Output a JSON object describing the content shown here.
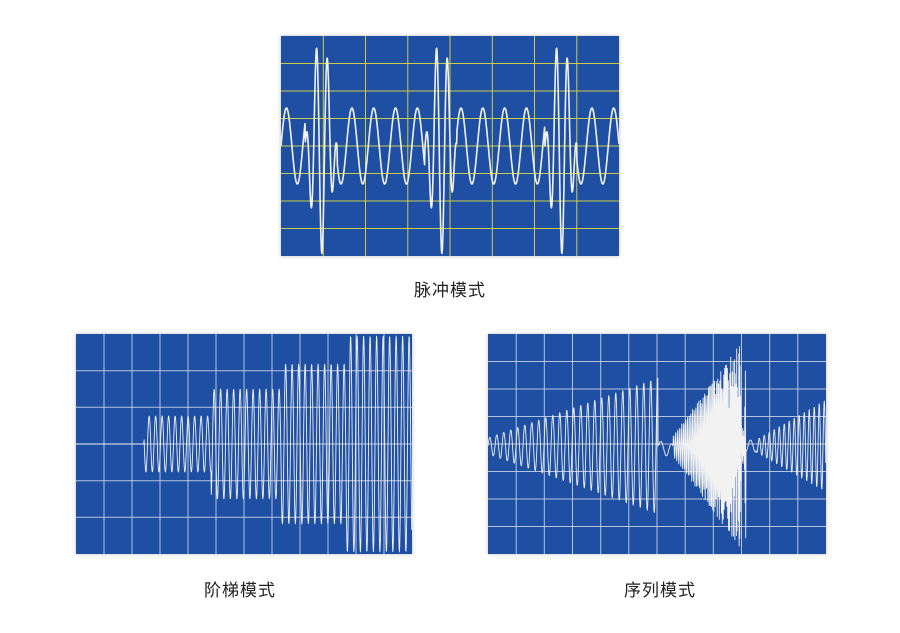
{
  "panels": [
    {
      "id": "pulse",
      "caption": "脉冲模式",
      "grid_color": "#e8e23a",
      "bg_color": "#1e4fa3",
      "wave_color": "#f2f2f2"
    },
    {
      "id": "step",
      "caption": "阶梯模式",
      "grid_color": "#cfd8ea",
      "bg_color": "#1e4fa3",
      "wave_color": "#f2f2f2"
    },
    {
      "id": "seq",
      "caption": "序列模式",
      "grid_color": "#cfd8ea",
      "bg_color": "#1e4fa3",
      "wave_color": "#f2f2f2"
    }
  ]
}
